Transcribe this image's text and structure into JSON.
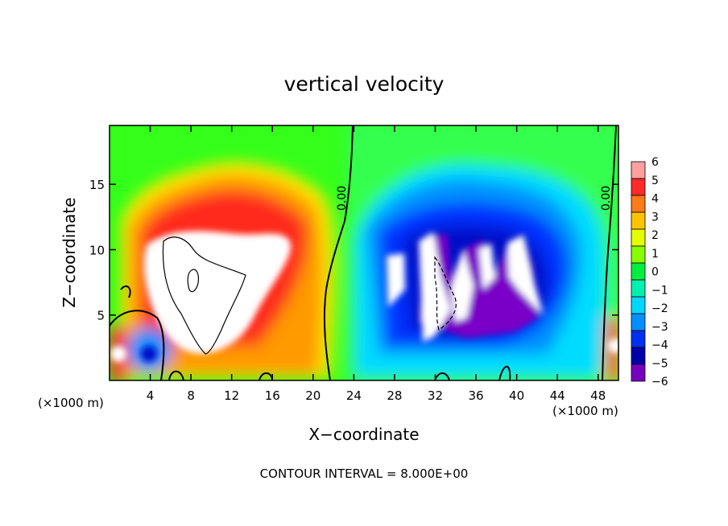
{
  "chart_data": {
    "type": "heatmap",
    "title": "vertical velocity",
    "xlabel": "X−coordinate",
    "ylabel": "Z−coordinate",
    "x_unit_left": "(×1000 m)",
    "x_unit_right": "(×1000 m)",
    "footer": "CONTOUR INTERVAL = 8.000E+00",
    "xlim": [
      0,
      50
    ],
    "ylim": [
      0,
      19.5
    ],
    "x_ticks": [
      {
        "value": 4,
        "label": "4"
      },
      {
        "value": 8,
        "label": "8"
      },
      {
        "value": 12,
        "label": "12"
      },
      {
        "value": 16,
        "label": "16"
      },
      {
        "value": 20,
        "label": "20"
      },
      {
        "value": 24,
        "label": "24"
      },
      {
        "value": 28,
        "label": "28"
      },
      {
        "value": 32,
        "label": "32"
      },
      {
        "value": 36,
        "label": "36"
      },
      {
        "value": 40,
        "label": "40"
      },
      {
        "value": 44,
        "label": "44"
      },
      {
        "value": 48,
        "label": "48"
      }
    ],
    "y_ticks": [
      {
        "value": 5,
        "label": "5"
      },
      {
        "value": 10,
        "label": "10"
      },
      {
        "value": 15,
        "label": "15"
      }
    ],
    "contour_labels": [
      {
        "text": "0.00",
        "x": 22.7,
        "y": 13.3
      },
      {
        "text": "0.00",
        "x": 48.5,
        "y": 13.5
      }
    ],
    "colorbar": {
      "labels": [
        "6",
        "5",
        "4",
        "3",
        "2",
        "1",
        "0",
        "−1",
        "−2",
        "−3",
        "−4",
        "−5",
        "−6"
      ],
      "colors": [
        "#ff9f9f",
        "#ff2a2a",
        "#ff7a1a",
        "#ffc400",
        "#e6ff00",
        "#88ff00",
        "#00ee40",
        "#00f0b0",
        "#00d8ff",
        "#0090ff",
        "#0030f0",
        "#0000aa",
        "#7700c0"
      ]
    }
  }
}
